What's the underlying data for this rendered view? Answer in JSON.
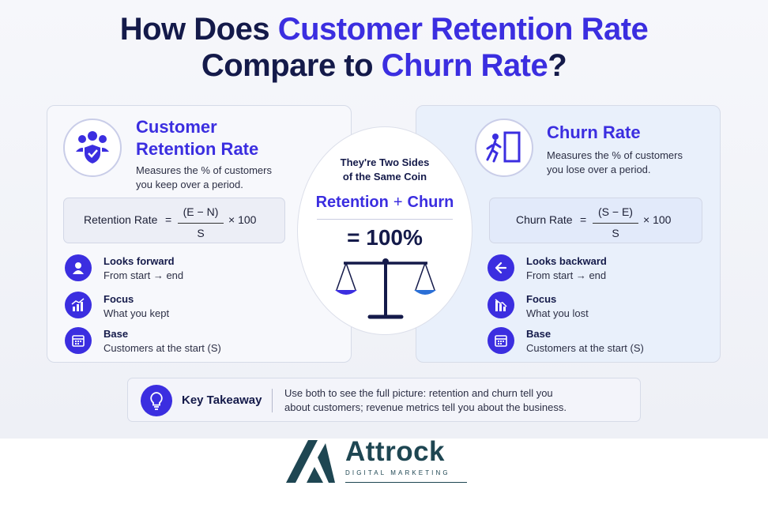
{
  "title": {
    "part1": "How Does ",
    "highlight1": "Customer Retention Rate",
    "part2": "Compare to ",
    "highlight2": "Churn Rate",
    "part3": "?"
  },
  "retention": {
    "title_line1": "Customer",
    "title_line2": "Retention Rate",
    "description_line1": "Measures the % of customers",
    "description_line2": "you keep over a period.",
    "formula": {
      "label": "Retention Rate",
      "equals": "=",
      "numerator": "(E − N)",
      "denominator": "S",
      "multiplier": "× 100"
    },
    "features": [
      {
        "title": "Looks forward",
        "desc": "From start → end",
        "icon": "user-icon"
      },
      {
        "title": "Focus",
        "desc": "What you kept",
        "icon": "growth-chart-icon"
      },
      {
        "title": "Base",
        "desc": "Customers at the start (S)",
        "icon": "calendar-icon"
      }
    ]
  },
  "churn": {
    "title": "Churn Rate",
    "description_line1": "Measures the % of customers",
    "description_line2": "you lose over a period.",
    "formula": {
      "label": "Churn Rate",
      "equals": "=",
      "numerator": "(S − E)",
      "denominator": "S",
      "multiplier": "× 100"
    },
    "features": [
      {
        "title": "Looks backward",
        "desc": "From start → end",
        "icon": "arrow-left-icon"
      },
      {
        "title": "Focus",
        "desc": "What you lost",
        "icon": "decline-chart-icon"
      },
      {
        "title": "Base",
        "desc": "Customers at the start (S)",
        "icon": "calendar-icon"
      }
    ]
  },
  "center": {
    "subtitle_line1": "They're Two Sides",
    "subtitle_line2": "of the Same Coin",
    "term1": "Retention",
    "plus": "+",
    "term2": "Churn",
    "total": "= 100%",
    "icon": "balance-scale-icon"
  },
  "takeaway": {
    "label": "Key Takeaway",
    "text_line1": "Use both to see the full picture: retention and churn tell you",
    "text_line2": "about customers; revenue metrics tell you about the business.",
    "icon": "lightbulb-icon"
  },
  "logo": {
    "name": "Attrock",
    "tagline": "DIGITAL MARKETING"
  },
  "colors": {
    "accent": "#3b2ee0",
    "navy": "#141a4a",
    "logo_teal": "#1e4652"
  }
}
